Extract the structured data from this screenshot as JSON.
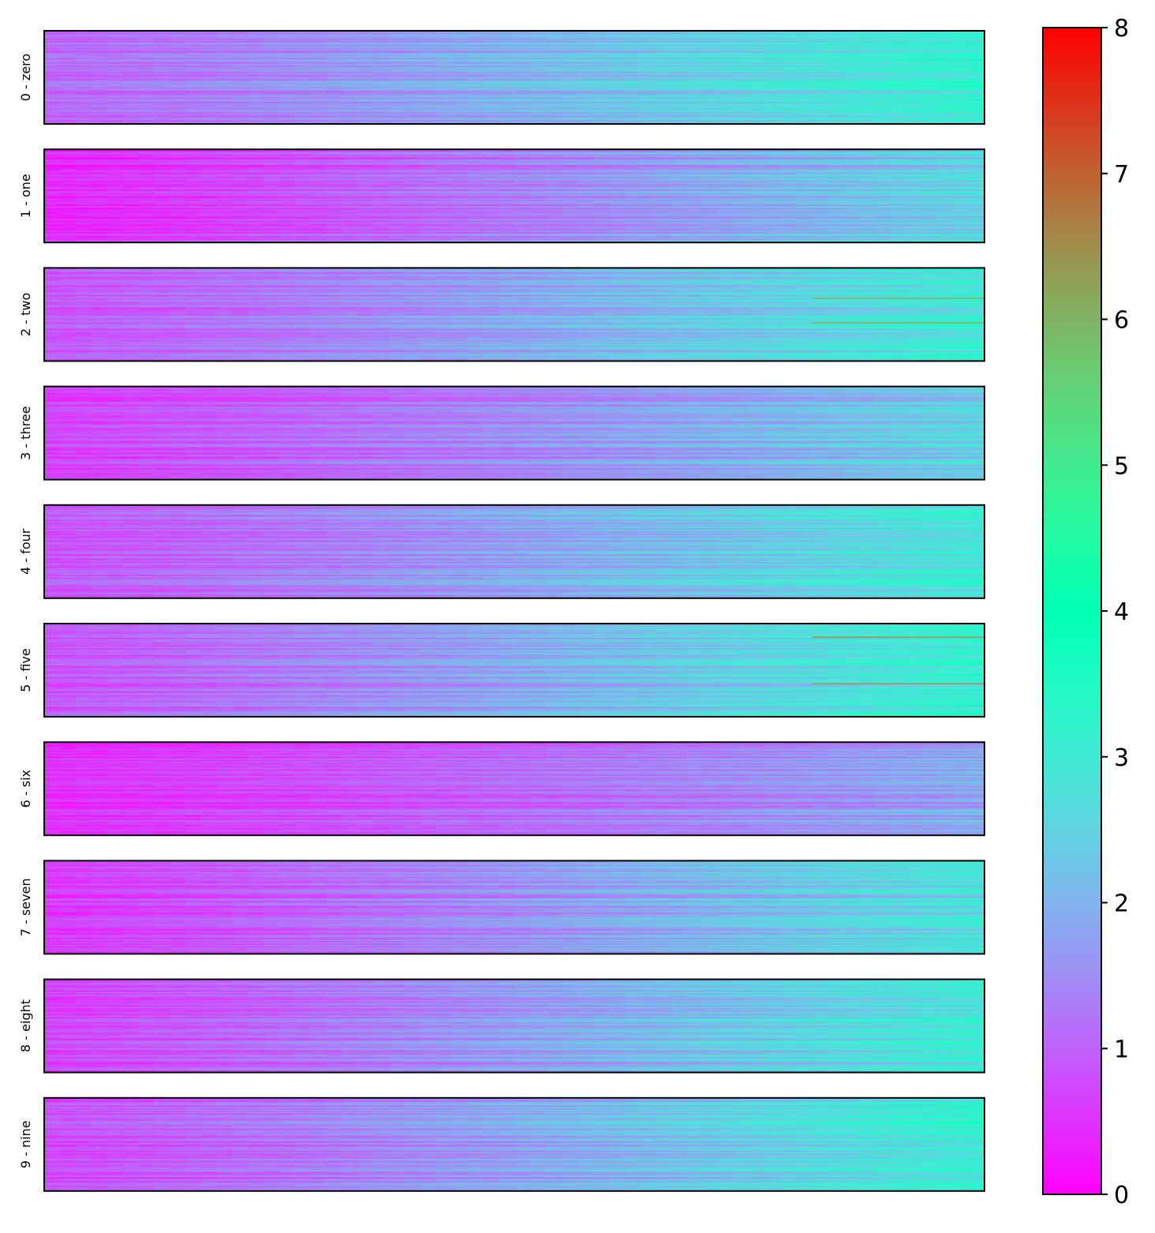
{
  "chart_data": {
    "type": "heatmap",
    "title": "",
    "xlabel": "",
    "ylabel": "",
    "panels": [
      {
        "label": "0 - zero",
        "mean_start": 1.1,
        "mean_end": 3.2,
        "noise": 0.55,
        "hot_rows": [],
        "hot_value": 0
      },
      {
        "label": "1 - one",
        "mean_start": 0.4,
        "mean_end": 2.5,
        "noise": 0.5,
        "hot_rows": [],
        "hot_value": 0
      },
      {
        "label": "2 - two",
        "mean_start": 0.9,
        "mean_end": 3.0,
        "noise": 0.55,
        "hot_rows": [
          0.32,
          0.58
        ],
        "hot_value": 6.0
      },
      {
        "label": "3 - three",
        "mean_start": 0.7,
        "mean_end": 2.5,
        "noise": 0.5,
        "hot_rows": [],
        "hot_value": 0
      },
      {
        "label": "4 - four",
        "mean_start": 0.9,
        "mean_end": 3.0,
        "noise": 0.55,
        "hot_rows": [],
        "hot_value": 0
      },
      {
        "label": "5 - five",
        "mean_start": 0.9,
        "mean_end": 3.2,
        "noise": 0.6,
        "hot_rows": [
          0.14,
          0.64
        ],
        "hot_value": 6.3
      },
      {
        "label": "6 - six",
        "mean_start": 0.5,
        "mean_end": 1.9,
        "noise": 0.45,
        "hot_rows": [],
        "hot_value": 0
      },
      {
        "label": "7 - seven",
        "mean_start": 0.6,
        "mean_end": 2.8,
        "noise": 0.55,
        "hot_rows": [],
        "hot_value": 0
      },
      {
        "label": "8 - eight",
        "mean_start": 0.7,
        "mean_end": 3.0,
        "noise": 0.55,
        "hot_rows": [],
        "hot_value": 0
      },
      {
        "label": "9 - nine",
        "mean_start": 0.8,
        "mean_end": 3.1,
        "noise": 0.55,
        "hot_rows": [],
        "hot_value": 0
      }
    ],
    "colorbar": {
      "min": 0,
      "max": 8,
      "ticks": [
        "0",
        "1",
        "2",
        "3",
        "4",
        "5",
        "6",
        "7",
        "8"
      ],
      "colormap": "rainbow"
    },
    "grid": false,
    "x_ticks_visible": false,
    "y_ticks_visible": false
  }
}
